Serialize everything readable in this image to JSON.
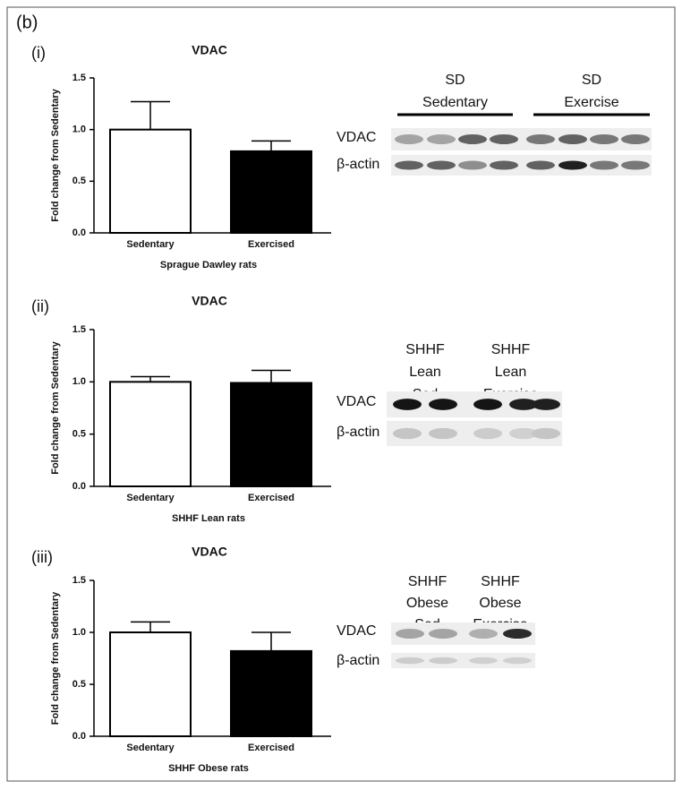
{
  "figure_label": "(b)",
  "chart_data": [
    {
      "type": "bar",
      "panel": "(i)",
      "title": "VDAC",
      "y_label": "Fold change from Sedentary",
      "x_label": "Sprague Dawley rats",
      "categories": [
        "Sedentary",
        "Exercised"
      ],
      "values": [
        1.0,
        0.79
      ],
      "errors": [
        0.27,
        0.1
      ],
      "colors": [
        "#ffffff",
        "#000000"
      ],
      "ylim": [
        0,
        1.5
      ],
      "yticks": [
        {
          "value": 0,
          "label": "0.0"
        },
        0.5,
        {
          "value": 1,
          "label": "1.0"
        },
        1.5
      ]
    },
    {
      "type": "bar",
      "panel": "(ii)",
      "title": "VDAC",
      "y_label": "Fold change from Sedentary",
      "x_label": "SHHF Lean rats",
      "categories": [
        "Sedentary",
        "Exercised"
      ],
      "values": [
        1.0,
        0.99
      ],
      "errors": [
        0.05,
        0.12
      ],
      "colors": [
        "#ffffff",
        "#000000"
      ],
      "ylim": [
        0,
        1.5
      ],
      "yticks": [
        {
          "value": 0,
          "label": "0.0"
        },
        0.5,
        {
          "value": 1,
          "label": "1.0"
        },
        1.5
      ]
    },
    {
      "type": "bar",
      "panel": "(iii)",
      "title": "VDAC",
      "y_label": "Fold change from Sedentary",
      "x_label": "SHHF Obese rats",
      "categories": [
        "Sedentary",
        "Exercised"
      ],
      "values": [
        1.0,
        0.82
      ],
      "errors": [
        0.1,
        0.18
      ],
      "colors": [
        "#ffffff",
        "#000000"
      ],
      "ylim": [
        0,
        1.5
      ],
      "yticks": [
        {
          "value": 0,
          "label": "0.0"
        },
        0.5,
        {
          "value": 1,
          "label": "1.0"
        },
        1.5
      ]
    }
  ],
  "blots": [
    {
      "groups": [
        [
          "SD",
          "Sedentary"
        ],
        [
          "SD",
          "Exercise"
        ]
      ],
      "rows": [
        "VDAC",
        "β-actin"
      ]
    },
    {
      "groups": [
        [
          "SHHF",
          "Lean",
          "Sed"
        ],
        [
          "SHHF",
          "Lean",
          "Exercise"
        ]
      ],
      "rows": [
        "VDAC",
        "β-actin"
      ]
    },
    {
      "groups": [
        [
          "SHHF",
          "Obese",
          "Sed"
        ],
        [
          "SHHF",
          "Obese",
          "Exercise"
        ]
      ],
      "rows": [
        "VDAC",
        "β-actin"
      ]
    }
  ]
}
